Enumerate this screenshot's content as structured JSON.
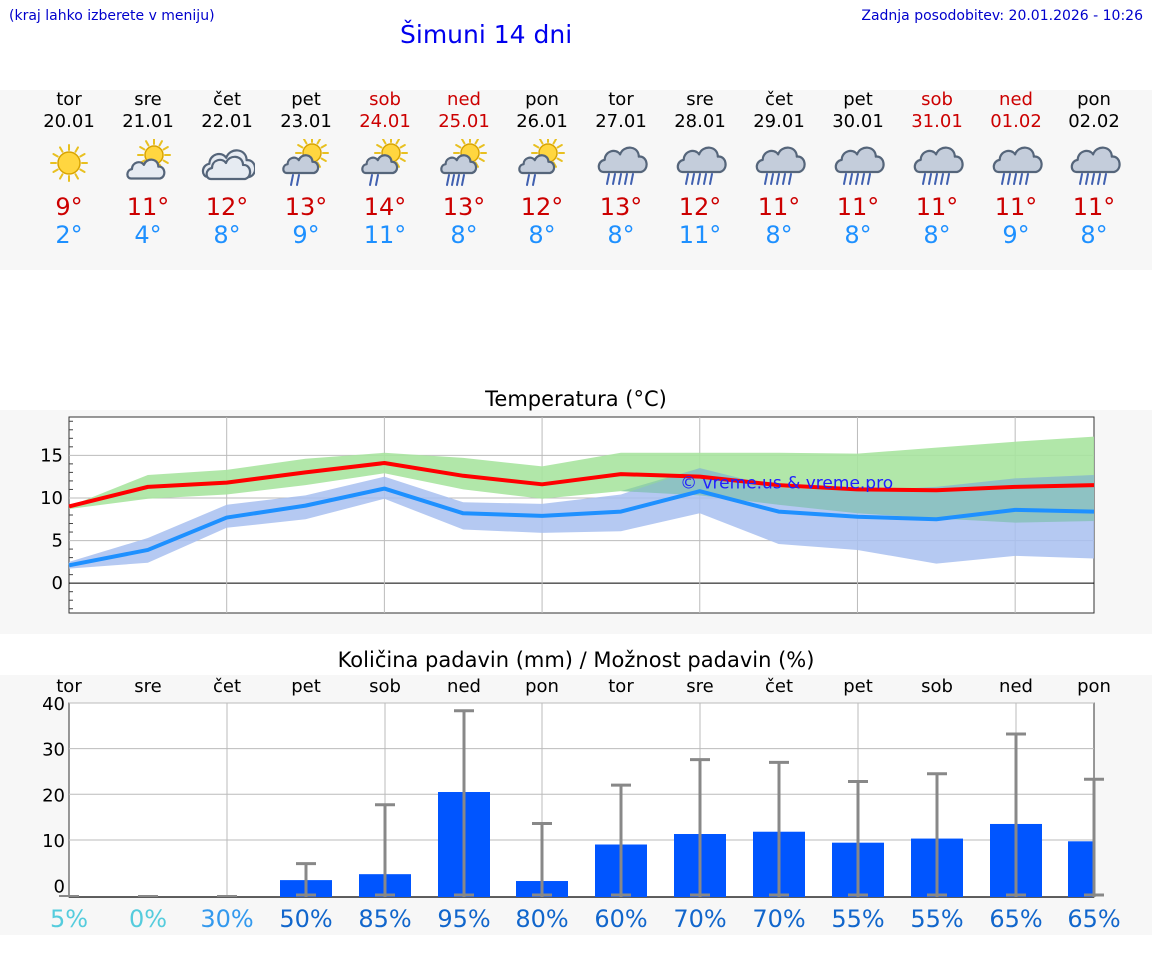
{
  "header": {
    "location_hint": "(kraj lahko izberete v meniju)",
    "title": "Šimuni 14 dni",
    "updated": "Zadnja posodobitev: 20.01.2026 - 10:26"
  },
  "days": [
    {
      "name": "tor",
      "date": "20.01",
      "weekend": false,
      "icon": "sun-icon",
      "tmax": "9°",
      "tmin": "2°"
    },
    {
      "name": "sre",
      "date": "21.01",
      "weekend": false,
      "icon": "sun-cloud-icon",
      "tmax": "11°",
      "tmin": "4°"
    },
    {
      "name": "čet",
      "date": "22.01",
      "weekend": false,
      "icon": "cloud-icon",
      "tmax": "12°",
      "tmin": "8°"
    },
    {
      "name": "pet",
      "date": "23.01",
      "weekend": false,
      "icon": "sun-cloud-light-rain-icon",
      "tmax": "13°",
      "tmin": "9°"
    },
    {
      "name": "sob",
      "date": "24.01",
      "weekend": true,
      "icon": "sun-cloud-light-rain-icon",
      "tmax": "14°",
      "tmin": "11°"
    },
    {
      "name": "ned",
      "date": "25.01",
      "weekend": true,
      "icon": "sun-cloud-rain-icon",
      "tmax": "13°",
      "tmin": "8°"
    },
    {
      "name": "pon",
      "date": "26.01",
      "weekend": false,
      "icon": "sun-cloud-light-rain-icon",
      "tmax": "12°",
      "tmin": "8°"
    },
    {
      "name": "tor",
      "date": "27.01",
      "weekend": false,
      "icon": "cloud-rain-icon",
      "tmax": "13°",
      "tmin": "8°"
    },
    {
      "name": "sre",
      "date": "28.01",
      "weekend": false,
      "icon": "cloud-rain-icon",
      "tmax": "12°",
      "tmin": "11°"
    },
    {
      "name": "čet",
      "date": "29.01",
      "weekend": false,
      "icon": "cloud-rain-icon",
      "tmax": "11°",
      "tmin": "8°"
    },
    {
      "name": "pet",
      "date": "30.01",
      "weekend": false,
      "icon": "cloud-rain-icon",
      "tmax": "11°",
      "tmin": "8°"
    },
    {
      "name": "sob",
      "date": "31.01",
      "weekend": true,
      "icon": "cloud-rain-icon",
      "tmax": "11°",
      "tmin": "8°"
    },
    {
      "name": "ned",
      "date": "01.02",
      "weekend": true,
      "icon": "cloud-rain-icon",
      "tmax": "11°",
      "tmin": "9°"
    },
    {
      "name": "pon",
      "date": "02.02",
      "weekend": false,
      "icon": "cloud-rain-icon",
      "tmax": "11°",
      "tmin": "8°"
    }
  ],
  "colors": {
    "max_line": "#ff0000",
    "max_band": "#a8e4a0",
    "min_line": "#1e90ff",
    "min_band": "#a8bff0",
    "overlap_band": "#78c0a8",
    "precip_bar": "#0055ff",
    "error_bar": "#888888",
    "weekend": "#cc0000",
    "low_prob": "#55ccdd",
    "mid_prob": "#3399ee",
    "high_prob": "#1166cc"
  },
  "chart_data": [
    {
      "type": "line",
      "title": "Temperatura (°C)",
      "watermark": "© vreme.us & vreme.pro",
      "ylim": [
        -3.5,
        19.5
      ],
      "yticks": [
        0,
        5,
        10,
        15
      ],
      "x": [
        0,
        1,
        2,
        3,
        4,
        5,
        6,
        7,
        8,
        9,
        10,
        11,
        12,
        13
      ],
      "series": [
        {
          "name": "max",
          "values": [
            9,
            11.3,
            11.8,
            13,
            14.1,
            12.6,
            11.6,
            12.8,
            12.5,
            11.5,
            11,
            10.9,
            11.3,
            11.5
          ],
          "band_low": [
            8.7,
            9.9,
            10.4,
            11.5,
            12.9,
            11,
            9.9,
            10.8,
            10.3,
            9.2,
            8.2,
            7.6,
            7.1,
            7.3
          ],
          "band_high": [
            9,
            12.7,
            13.3,
            14.6,
            15.3,
            14.7,
            13.7,
            15.3,
            15.3,
            15.3,
            15.2,
            15.9,
            16.6,
            17.2
          ]
        },
        {
          "name": "min",
          "values": [
            2.1,
            3.9,
            7.7,
            9.1,
            11.1,
            8.2,
            7.9,
            8.4,
            10.8,
            8.4,
            7.8,
            7.5,
            8.6,
            8.4
          ],
          "band_low": [
            1.7,
            2.4,
            6.5,
            7.5,
            9.9,
            6.3,
            5.9,
            6.1,
            8.2,
            4.6,
            3.9,
            2.3,
            3.2,
            2.9
          ],
          "band_high": [
            2.5,
            5.3,
            9.2,
            10.3,
            12.5,
            9.5,
            9.3,
            10.4,
            13.5,
            11.2,
            10.8,
            11.3,
            12.3,
            12.7
          ]
        }
      ]
    },
    {
      "type": "bar",
      "title": "Količina padavin (mm) / Možnost padavin (%)",
      "categories": [
        "tor",
        "sre",
        "čet",
        "pet",
        "sob",
        "ned",
        "pon",
        "tor",
        "sre",
        "čet",
        "pet",
        "sob",
        "ned",
        "pon"
      ],
      "ylim": [
        -2.5,
        40
      ],
      "yticks": [
        0,
        10,
        20,
        30,
        40
      ],
      "values": [
        0,
        0,
        0,
        1.2,
        2.5,
        20.5,
        1,
        9,
        11.3,
        11.8,
        9.4,
        10.3,
        13.5,
        9.7
      ],
      "err_high": [
        0,
        0.1,
        0.2,
        4.8,
        17.7,
        38.3,
        13.6,
        22,
        27.6,
        27,
        22.8,
        24.5,
        33.2,
        23.3
      ],
      "err_low": [
        0,
        0,
        0,
        0,
        0,
        0,
        0,
        0,
        0,
        0,
        0,
        0,
        0,
        0
      ],
      "probabilities": [
        "5%",
        "0%",
        "30%",
        "50%",
        "85%",
        "95%",
        "80%",
        "60%",
        "70%",
        "70%",
        "55%",
        "55%",
        "65%",
        "65%"
      ]
    }
  ]
}
